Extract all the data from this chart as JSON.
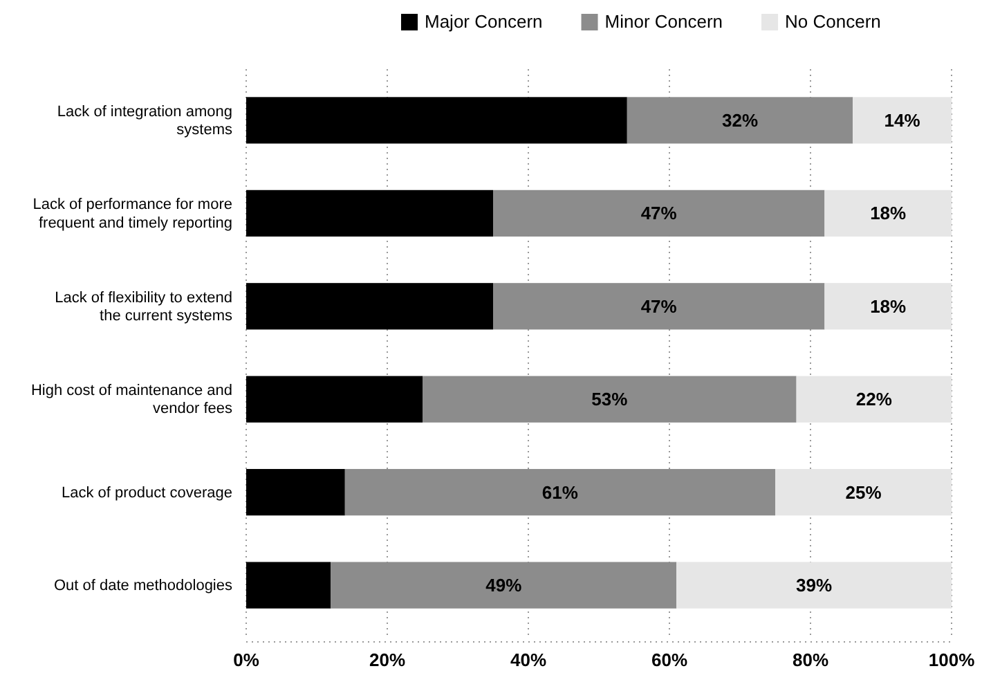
{
  "chart_data": {
    "type": "bar",
    "orientation": "horizontal",
    "stacked": true,
    "categories": [
      "Lack of integration among systems",
      "Lack of performance for more frequent and timely reporting",
      "Lack of flexibility to extend the current systems",
      "High cost of maintenance and vendor fees",
      "Lack of product coverage",
      "Out of date methodologies"
    ],
    "series": [
      {
        "name": "Major Concern",
        "color": "#000000",
        "values": [
          54,
          35,
          35,
          25,
          14,
          12
        ]
      },
      {
        "name": "Minor Concern",
        "color": "#8c8c8c",
        "values": [
          32,
          47,
          47,
          53,
          61,
          49
        ],
        "value_labels": [
          "32%",
          "47%",
          "47%",
          "53%",
          "61%",
          "49%"
        ]
      },
      {
        "name": "No Concern",
        "color": "#e6e6e6",
        "values": [
          14,
          18,
          18,
          22,
          25,
          39
        ],
        "value_labels": [
          "14%",
          "18%",
          "18%",
          "22%",
          "25%",
          "39%"
        ]
      }
    ],
    "xlim": [
      0,
      100
    ],
    "xticks": [
      {
        "value": 0,
        "label": "0%"
      },
      {
        "value": 20,
        "label": "20%"
      },
      {
        "value": 40,
        "label": "40%"
      },
      {
        "value": 60,
        "label": "60%"
      },
      {
        "value": 80,
        "label": "80%"
      },
      {
        "value": 100,
        "label": "100%"
      }
    ],
    "grid": "x",
    "legend": "top"
  }
}
